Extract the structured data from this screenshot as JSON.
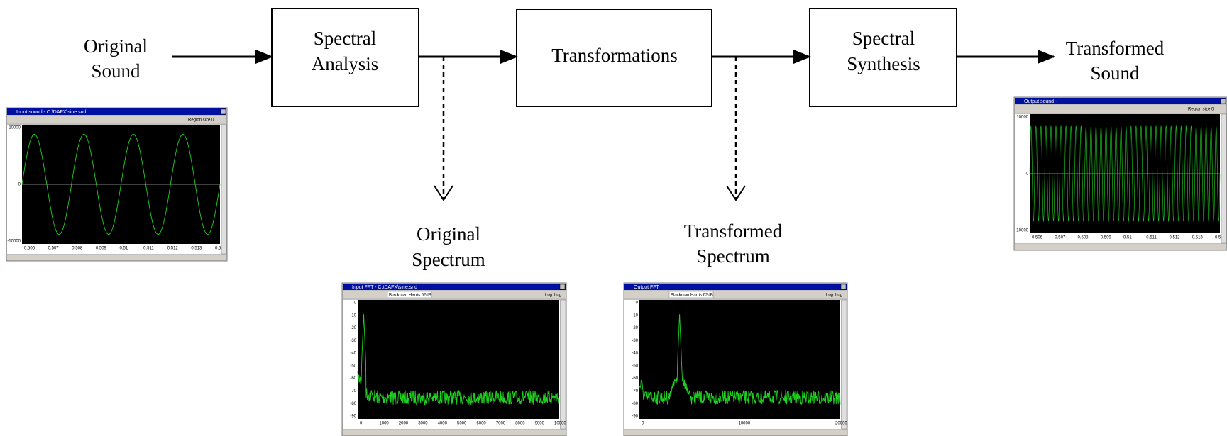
{
  "nodes": [
    {
      "label": [
        "Original",
        "Sound"
      ]
    },
    {
      "label": [
        "Spectral",
        "Analysis"
      ]
    },
    {
      "label": [
        "Transformations"
      ]
    },
    {
      "label": [
        "Spectral",
        "Synthesis"
      ]
    },
    {
      "label": [
        "Transformed",
        "Sound"
      ]
    },
    {
      "label": [
        "Original",
        "Spectrum"
      ]
    },
    {
      "label": [
        "Transformed",
        "Spectrum"
      ]
    }
  ],
  "windows": [
    {
      "title": "Input sound - C:\\DAFX\\sine.snd",
      "toolbar": [
        "Region size 0"
      ],
      "yticks": [
        "10000",
        "0",
        "-10000"
      ],
      "xticks": [
        "0.506",
        "0.507",
        "0.508",
        "0.509",
        "0.51",
        "0.511",
        "0.512",
        "0.513",
        "0.5"
      ]
    },
    {
      "title": "Input FFT - C:\\DAFX\\sine.snd",
      "toolbar": [
        "Blackman Harris 62dB",
        "Log",
        "Log"
      ],
      "yticks": [
        "0",
        "-10",
        "-20",
        "-30",
        "-40",
        "-50",
        "-60",
        "-70",
        "-80",
        "-90"
      ],
      "xticks": [
        "0",
        "1000",
        "2000",
        "3000",
        "4000",
        "5000",
        "6000",
        "7000",
        "8000",
        "9000",
        "10000"
      ]
    },
    {
      "title": "Output FFT",
      "toolbar": [
        "Blackman Harris 62dB",
        "Log",
        "Log"
      ],
      "yticks": [
        "0",
        "-10",
        "-20",
        "-30",
        "-40",
        "-50",
        "-60",
        "-70",
        "-80",
        "-90"
      ],
      "xticks": [
        "0",
        "10000",
        "20000"
      ]
    },
    {
      "title": "Output sound -",
      "toolbar": [
        "Region size 0"
      ],
      "yticks": [
        "10000",
        "0",
        "-10000"
      ],
      "xticks": [
        "0.506",
        "0.507",
        "0.508",
        "0.509",
        "0.51",
        "0.511",
        "0.512",
        "0.513",
        "0.5"
      ]
    }
  ]
}
